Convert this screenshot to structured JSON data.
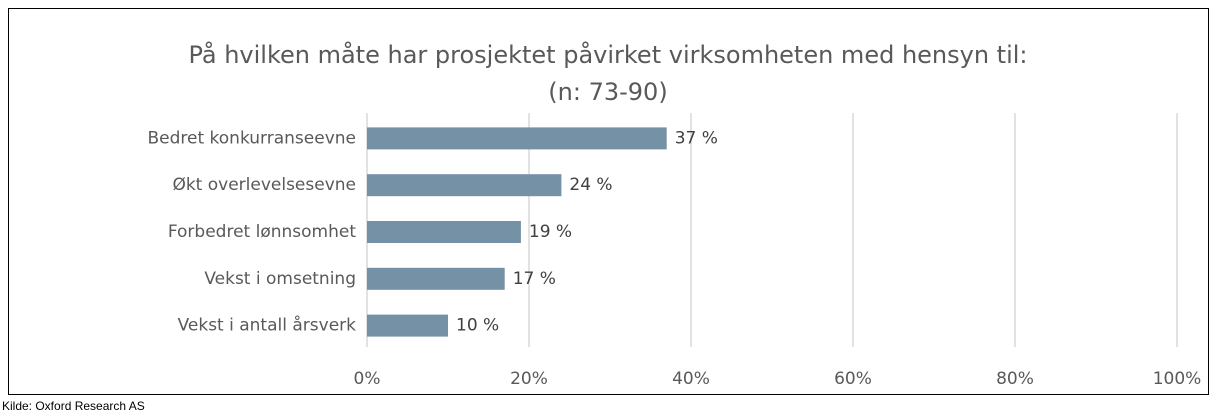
{
  "chart_data": {
    "type": "bar",
    "orientation": "horizontal",
    "title": "På hvilken måte har prosjektet påvirket virksomheten med hensyn til:",
    "subtitle": "(n: 73-90)",
    "categories": [
      "Bedret konkurranseevne",
      "Økt overlevelsesevne",
      "Forbedret lønnsomhet",
      "Vekst i omsetning",
      "Vekst i antall årsverk"
    ],
    "values": [
      37,
      24,
      19,
      17,
      10
    ],
    "value_labels": [
      "37 %",
      "24 %",
      "19 %",
      "17 %",
      "10 %"
    ],
    "color": "#7591a6",
    "xlim": [
      0,
      100
    ],
    "xticks": [
      {
        "value": 0,
        "label": "0%"
      },
      {
        "value": 20,
        "label": "20%"
      },
      {
        "value": 40,
        "label": "40%"
      },
      {
        "value": 60,
        "label": "60%"
      },
      {
        "value": 80,
        "label": "80%"
      },
      {
        "value": 100,
        "label": "100%"
      }
    ],
    "grid": true,
    "source": "Kilde: Oxford Research AS"
  }
}
